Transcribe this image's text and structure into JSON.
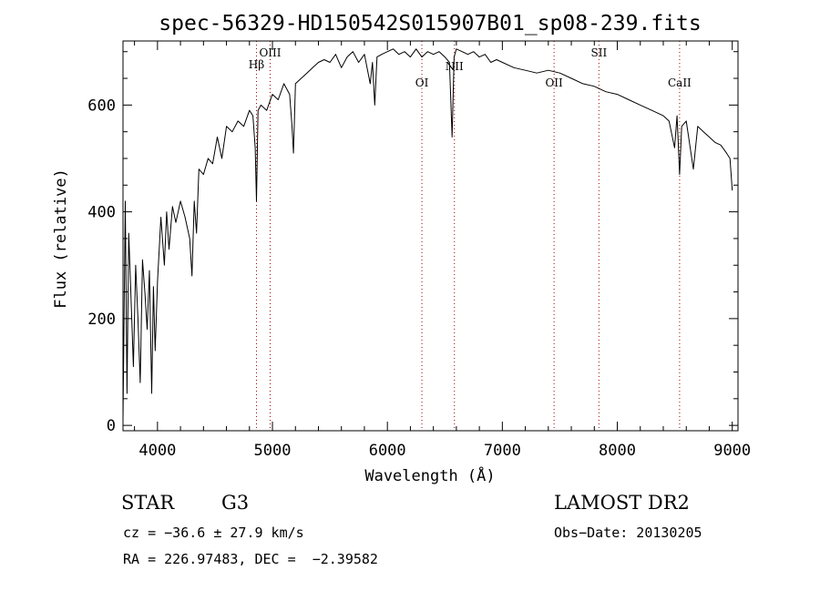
{
  "chart_data": {
    "type": "line",
    "title": "spec-56329-HD150542S015907B01_sp08-239.fits",
    "xlabel": "Wavelength (Å)",
    "ylabel": "Flux (relative)",
    "xlim": [
      3700,
      9050
    ],
    "ylim": [
      -10,
      720
    ],
    "x_ticks": [
      4000,
      5000,
      6000,
      7000,
      8000,
      9000
    ],
    "y_ticks": [
      0,
      200,
      400,
      600
    ],
    "grid": false,
    "series": [
      {
        "x": [
          3700,
          3720,
          3735,
          3750,
          3770,
          3790,
          3810,
          3830,
          3850,
          3870,
          3890,
          3910,
          3930,
          3950,
          3965,
          3980,
          4000,
          4030,
          4060,
          4080,
          4100,
          4130,
          4160,
          4200,
          4240,
          4280,
          4300,
          4320,
          4340,
          4360,
          4400,
          4440,
          4480,
          4520,
          4560,
          4600,
          4650,
          4700,
          4750,
          4800,
          4830,
          4850,
          4861,
          4875,
          4900,
          4950,
          5000,
          5050,
          5100,
          5150,
          5170,
          5183,
          5200,
          5250,
          5300,
          5350,
          5400,
          5450,
          5500,
          5550,
          5600,
          5650,
          5700,
          5750,
          5800,
          5850,
          5870,
          5890,
          5910,
          5950,
          6000,
          6050,
          6100,
          6150,
          6200,
          6250,
          6300,
          6350,
          6400,
          6450,
          6500,
          6540,
          6563,
          6580,
          6600,
          6650,
          6700,
          6750,
          6800,
          6850,
          6900,
          6950,
          7000,
          7100,
          7200,
          7300,
          7400,
          7500,
          7600,
          7700,
          7800,
          7900,
          8000,
          8100,
          8200,
          8300,
          8400,
          8450,
          8498,
          8520,
          8542,
          8560,
          8600,
          8662,
          8700,
          8750,
          8800,
          8850,
          8900,
          8950,
          8980,
          9000
        ],
        "values": [
          10,
          420,
          60,
          360,
          240,
          110,
          300,
          200,
          80,
          310,
          250,
          180,
          290,
          60,
          260,
          140,
          270,
          390,
          300,
          400,
          330,
          410,
          380,
          420,
          390,
          350,
          280,
          420,
          360,
          480,
          470,
          500,
          490,
          540,
          500,
          560,
          550,
          570,
          560,
          590,
          580,
          520,
          420,
          590,
          600,
          590,
          620,
          610,
          640,
          620,
          560,
          510,
          640,
          650,
          660,
          670,
          680,
          685,
          680,
          695,
          670,
          690,
          700,
          680,
          695,
          640,
          680,
          600,
          690,
          695,
          700,
          705,
          695,
          700,
          690,
          705,
          690,
          700,
          695,
          700,
          690,
          680,
          540,
          690,
          705,
          700,
          695,
          700,
          690,
          695,
          680,
          685,
          680,
          670,
          665,
          660,
          665,
          660,
          650,
          640,
          635,
          625,
          620,
          610,
          600,
          590,
          580,
          570,
          520,
          580,
          470,
          560,
          570,
          480,
          560,
          550,
          540,
          530,
          525,
          510,
          500,
          440
        ]
      }
    ],
    "line_markers": [
      {
        "label": "Hβ",
        "x": 4861
      },
      {
        "label": "OIII",
        "x": 4980
      },
      {
        "label": "OI",
        "x": 6300
      },
      {
        "label": "NII",
        "x": 6583
      },
      {
        "label": "OII",
        "x": 7450
      },
      {
        "label": "SII",
        "x": 7840
      },
      {
        "label": "CaII",
        "x": 8542
      }
    ]
  },
  "info": {
    "object_class": "STAR",
    "subclass": "G3",
    "cz_line": "cz = −36.6 ± 27.9 km/s",
    "radec_line": "RA = 226.97483, DEC =  −2.39582",
    "survey": "LAMOST DR2",
    "obs_date": "Obs−Date: 20130205"
  },
  "colors": {
    "spectrum": "#000000",
    "marker_line": "#a00000"
  }
}
